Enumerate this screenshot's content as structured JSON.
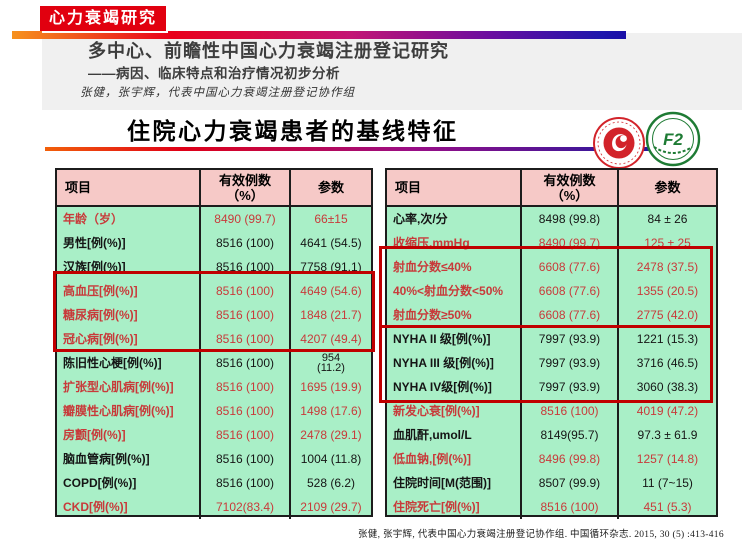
{
  "slide": {
    "badge": "心力衰竭研究",
    "title_line1": "多中心、前瞻性中国心力衰竭注册登记研究",
    "title_line2": "——病因、临床特点和治疗情况初步分析",
    "authors": "张健，张宇辉，代表中国心力衰竭注册登记协作组",
    "section_title": "住院心力衰竭患者的基线特征",
    "footer_citation": "张健, 张宇辉, 代表中国心力衰竭注册登记协作组. 中国循环杂志. 2015, 30 (5) :413-416"
  },
  "logos": [
    {
      "name": "hospital-red-emblem"
    },
    {
      "name": "society-green-emblem",
      "letters": "F2"
    }
  ],
  "colors": {
    "badge_red": "#e1000f",
    "highlight_box_red": "#c00000",
    "red_text": "#c83a3a",
    "header_pink": "#f6c9c7",
    "body_mint": "#a9efc7",
    "gradient": [
      "#f6921e",
      "#e9001b",
      "#c31574",
      "#1e16ac"
    ]
  },
  "tables": [
    {
      "headers": [
        "项目",
        "有效例数\n（%）",
        "参数"
      ],
      "rows": [
        {
          "label": "年龄（岁）",
          "n": "8490 (99.7)",
          "param": "66±15",
          "color": "red"
        },
        {
          "label": "男性[例(%)]",
          "n": "8516 (100)",
          "param": "4641 (54.5)",
          "color": "black"
        },
        {
          "label": "汉族[例(%)]",
          "n": "8516 (100)",
          "param": "7758 (91.1)",
          "color": "black"
        },
        {
          "label": "高血压[例(%)]",
          "n": "8516 (100)",
          "param": "4649 (54.6)",
          "color": "red"
        },
        {
          "label": "糖尿病[例(%)]",
          "n": "8516 (100)",
          "param": "1848 (21.7)",
          "color": "red"
        },
        {
          "label": "冠心病[例(%)]",
          "n": "8516 (100)",
          "param": "4207 (49.4)",
          "color": "red"
        },
        {
          "label": "陈旧性心梗[例(%)]",
          "n": "8516 (100)",
          "param": "954\n(11.2)",
          "color": "black",
          "wrap": true
        },
        {
          "label": "扩张型心肌病[例(%)]",
          "n": "8516 (100)",
          "param": "1695 (19.9)",
          "color": "red"
        },
        {
          "label": "瓣膜性心肌病[例(%)]",
          "n": "8516 (100)",
          "param": "1498 (17.6)",
          "color": "red"
        },
        {
          "label": "房颤[例(%)]",
          "n": "8516 (100)",
          "param": "2478 (29.1)",
          "color": "red"
        },
        {
          "label": "脑血管病[例(%)]",
          "n": "8516 (100)",
          "param": "1004 (11.8)",
          "color": "black"
        },
        {
          "label": "COPD[例(%)]",
          "n": "8516 (100)",
          "param": "528 (6.2)",
          "color": "black"
        },
        {
          "label": "CKD[例(%)]",
          "n": "7102(83.4)",
          "param": "2109 (29.7)",
          "color": "red"
        }
      ]
    },
    {
      "headers": [
        "项目",
        "有效例数\n（%）",
        "参数"
      ],
      "rows": [
        {
          "label": "心率,次/分",
          "n": "8498 (99.8)",
          "param": "84 ± 26",
          "color": "black"
        },
        {
          "label": "收缩压,mmHg",
          "n": "8490 (99.7)",
          "param": "125 ± 25",
          "color": "red"
        },
        {
          "label": "射血分数≤40%",
          "n": "6608 (77.6)",
          "param": "2478 (37.5)",
          "color": "red"
        },
        {
          "label": "40%<射血分数<50%",
          "n": "6608 (77.6)",
          "param": "1355 (20.5)",
          "color": "red"
        },
        {
          "label": "射血分数≥50%",
          "n": "6608 (77.6)",
          "param": "2775 (42.0)",
          "color": "red"
        },
        {
          "label": "NYHA II 级[例(%)]",
          "n": "7997 (93.9)",
          "param": "1221 (15.3)",
          "color": "black"
        },
        {
          "label": "NYHA III 级[例(%)]",
          "n": "7997 (93.9)",
          "param": "3716 (46.5)",
          "color": "black"
        },
        {
          "label": "NYHA IV级[例(%)]",
          "n": "7997 (93.9)",
          "param": "3060 (38.3)",
          "color": "black"
        },
        {
          "label": "新发心衰[例(%)]",
          "n": "8516 (100)",
          "param": "4019 (47.2)",
          "color": "red"
        },
        {
          "label": "血肌酐,umol/L",
          "n": "8149(95.7)",
          "param": "97.3 ± 61.9",
          "color": "black"
        },
        {
          "label": "低血钠,[例(%)]",
          "n": "8496 (99.8)",
          "param": "1257 (14.8)",
          "color": "red"
        },
        {
          "label": "住院时间[M(范围)]",
          "n": "8507 (99.9)",
          "param": "11 (7~15)",
          "color": "black"
        },
        {
          "label": "住院死亡[例(%)]",
          "n": "8516 (100)",
          "param": "451 (5.3)",
          "color": "red"
        }
      ]
    }
  ]
}
